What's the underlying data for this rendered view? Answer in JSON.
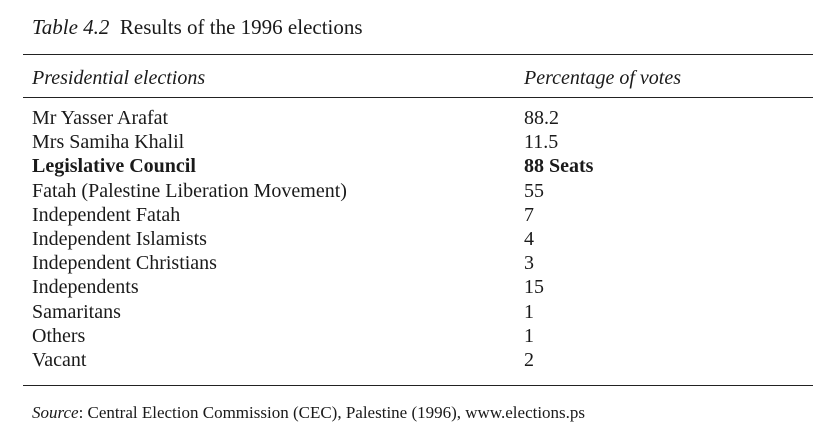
{
  "caption": {
    "label": "Table 4.2",
    "title": "Results of the 1996 elections"
  },
  "header": {
    "col1": "Presidential elections",
    "col2": "Percentage of votes"
  },
  "rows": [
    {
      "name": "Mr Yasser Arafat",
      "value": "88.2",
      "bold": false
    },
    {
      "name": "Mrs Samiha Khalil",
      "value": "11.5",
      "bold": false
    },
    {
      "name": "Legislative Council",
      "value": "88 Seats",
      "bold": true
    },
    {
      "name": "Fatah (Palestine Liberation Movement)",
      "value": "55",
      "bold": false
    },
    {
      "name": "Independent Fatah",
      "value": "7",
      "bold": false
    },
    {
      "name": "Independent Islamists",
      "value": "4",
      "bold": false
    },
    {
      "name": "Independent Christians",
      "value": "3",
      "bold": false
    },
    {
      "name": "Independents",
      "value": "15",
      "bold": false
    },
    {
      "name": "Samaritans",
      "value": "1",
      "bold": false
    },
    {
      "name": "Others",
      "value": "1",
      "bold": false
    },
    {
      "name": "Vacant",
      "value": "2",
      "bold": false
    }
  ],
  "source": {
    "label": "Source",
    "text": ": Central Election Commission (CEC), Palestine (1996), www.elections.ps"
  }
}
